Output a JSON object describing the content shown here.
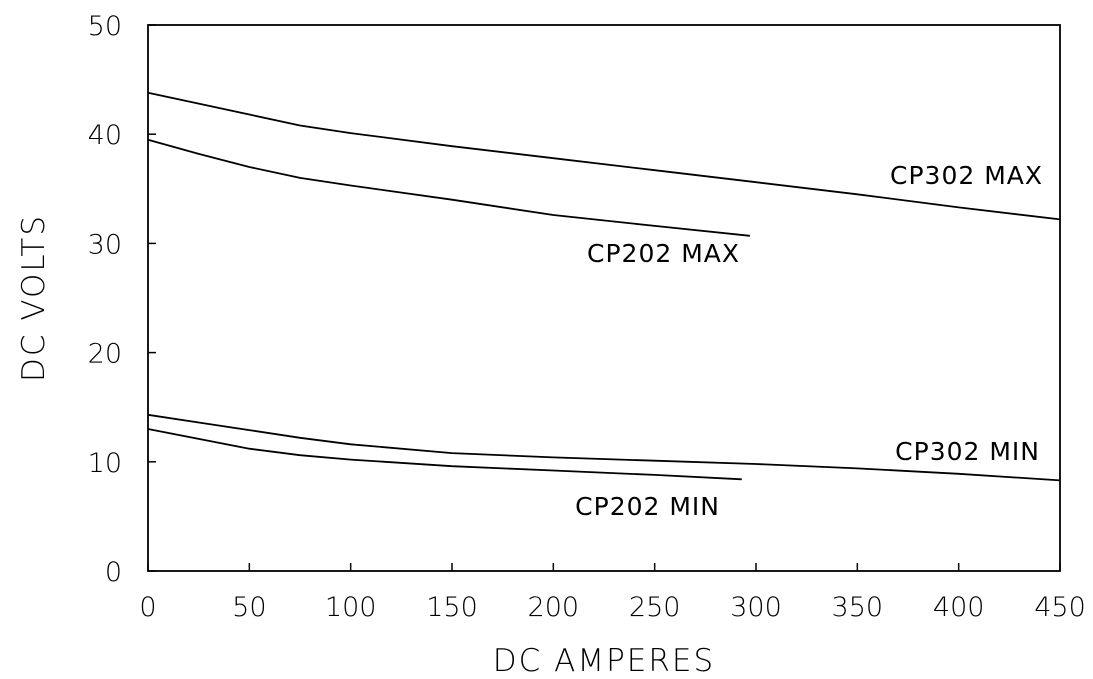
{
  "chart_data": {
    "type": "line",
    "title": "",
    "xlabel": "DC AMPERES",
    "ylabel": "DC VOLTS",
    "xlim": [
      0,
      450
    ],
    "ylim": [
      0,
      50
    ],
    "xticks": [
      0,
      50,
      100,
      150,
      200,
      250,
      300,
      350,
      400,
      450
    ],
    "yticks": [
      0,
      10,
      20,
      30,
      40,
      50
    ],
    "xtick_labels": [
      "0",
      "50",
      "100",
      "150",
      "200",
      "250",
      "300",
      "350",
      "400",
      "450"
    ],
    "ytick_labels": [
      "0",
      "10",
      "20",
      "30",
      "40",
      "50"
    ],
    "grid": false,
    "series": [
      {
        "name": "CP302 MAX",
        "x": [
          0,
          25,
          50,
          75,
          100,
          150,
          200,
          250,
          300,
          350,
          400,
          450
        ],
        "values": [
          43.8,
          42.8,
          41.8,
          40.8,
          40.1,
          38.9,
          37.8,
          36.7,
          35.6,
          34.5,
          33.3,
          32.2
        ]
      },
      {
        "name": "CP202 MAX",
        "x": [
          0,
          25,
          50,
          75,
          100,
          150,
          200,
          250,
          297
        ],
        "values": [
          39.5,
          38.2,
          37.0,
          36.0,
          35.3,
          34.0,
          32.6,
          31.6,
          30.7
        ]
      },
      {
        "name": "CP302 MIN",
        "x": [
          0,
          25,
          50,
          75,
          100,
          150,
          200,
          250,
          300,
          350,
          400,
          450
        ],
        "values": [
          14.3,
          13.6,
          12.9,
          12.2,
          11.6,
          10.8,
          10.4,
          10.1,
          9.8,
          9.4,
          8.9,
          8.3
        ]
      },
      {
        "name": "CP202 MIN",
        "x": [
          0,
          25,
          50,
          75,
          100,
          150,
          200,
          250,
          293
        ],
        "values": [
          13.0,
          12.1,
          11.2,
          10.6,
          10.2,
          9.6,
          9.2,
          8.8,
          8.4
        ]
      }
    ],
    "labels": {
      "cp302_max": "CP302 MAX",
      "cp202_max": "CP202 MAX",
      "cp302_min": "CP302 MIN",
      "cp202_min": "CP202 MIN"
    }
  }
}
